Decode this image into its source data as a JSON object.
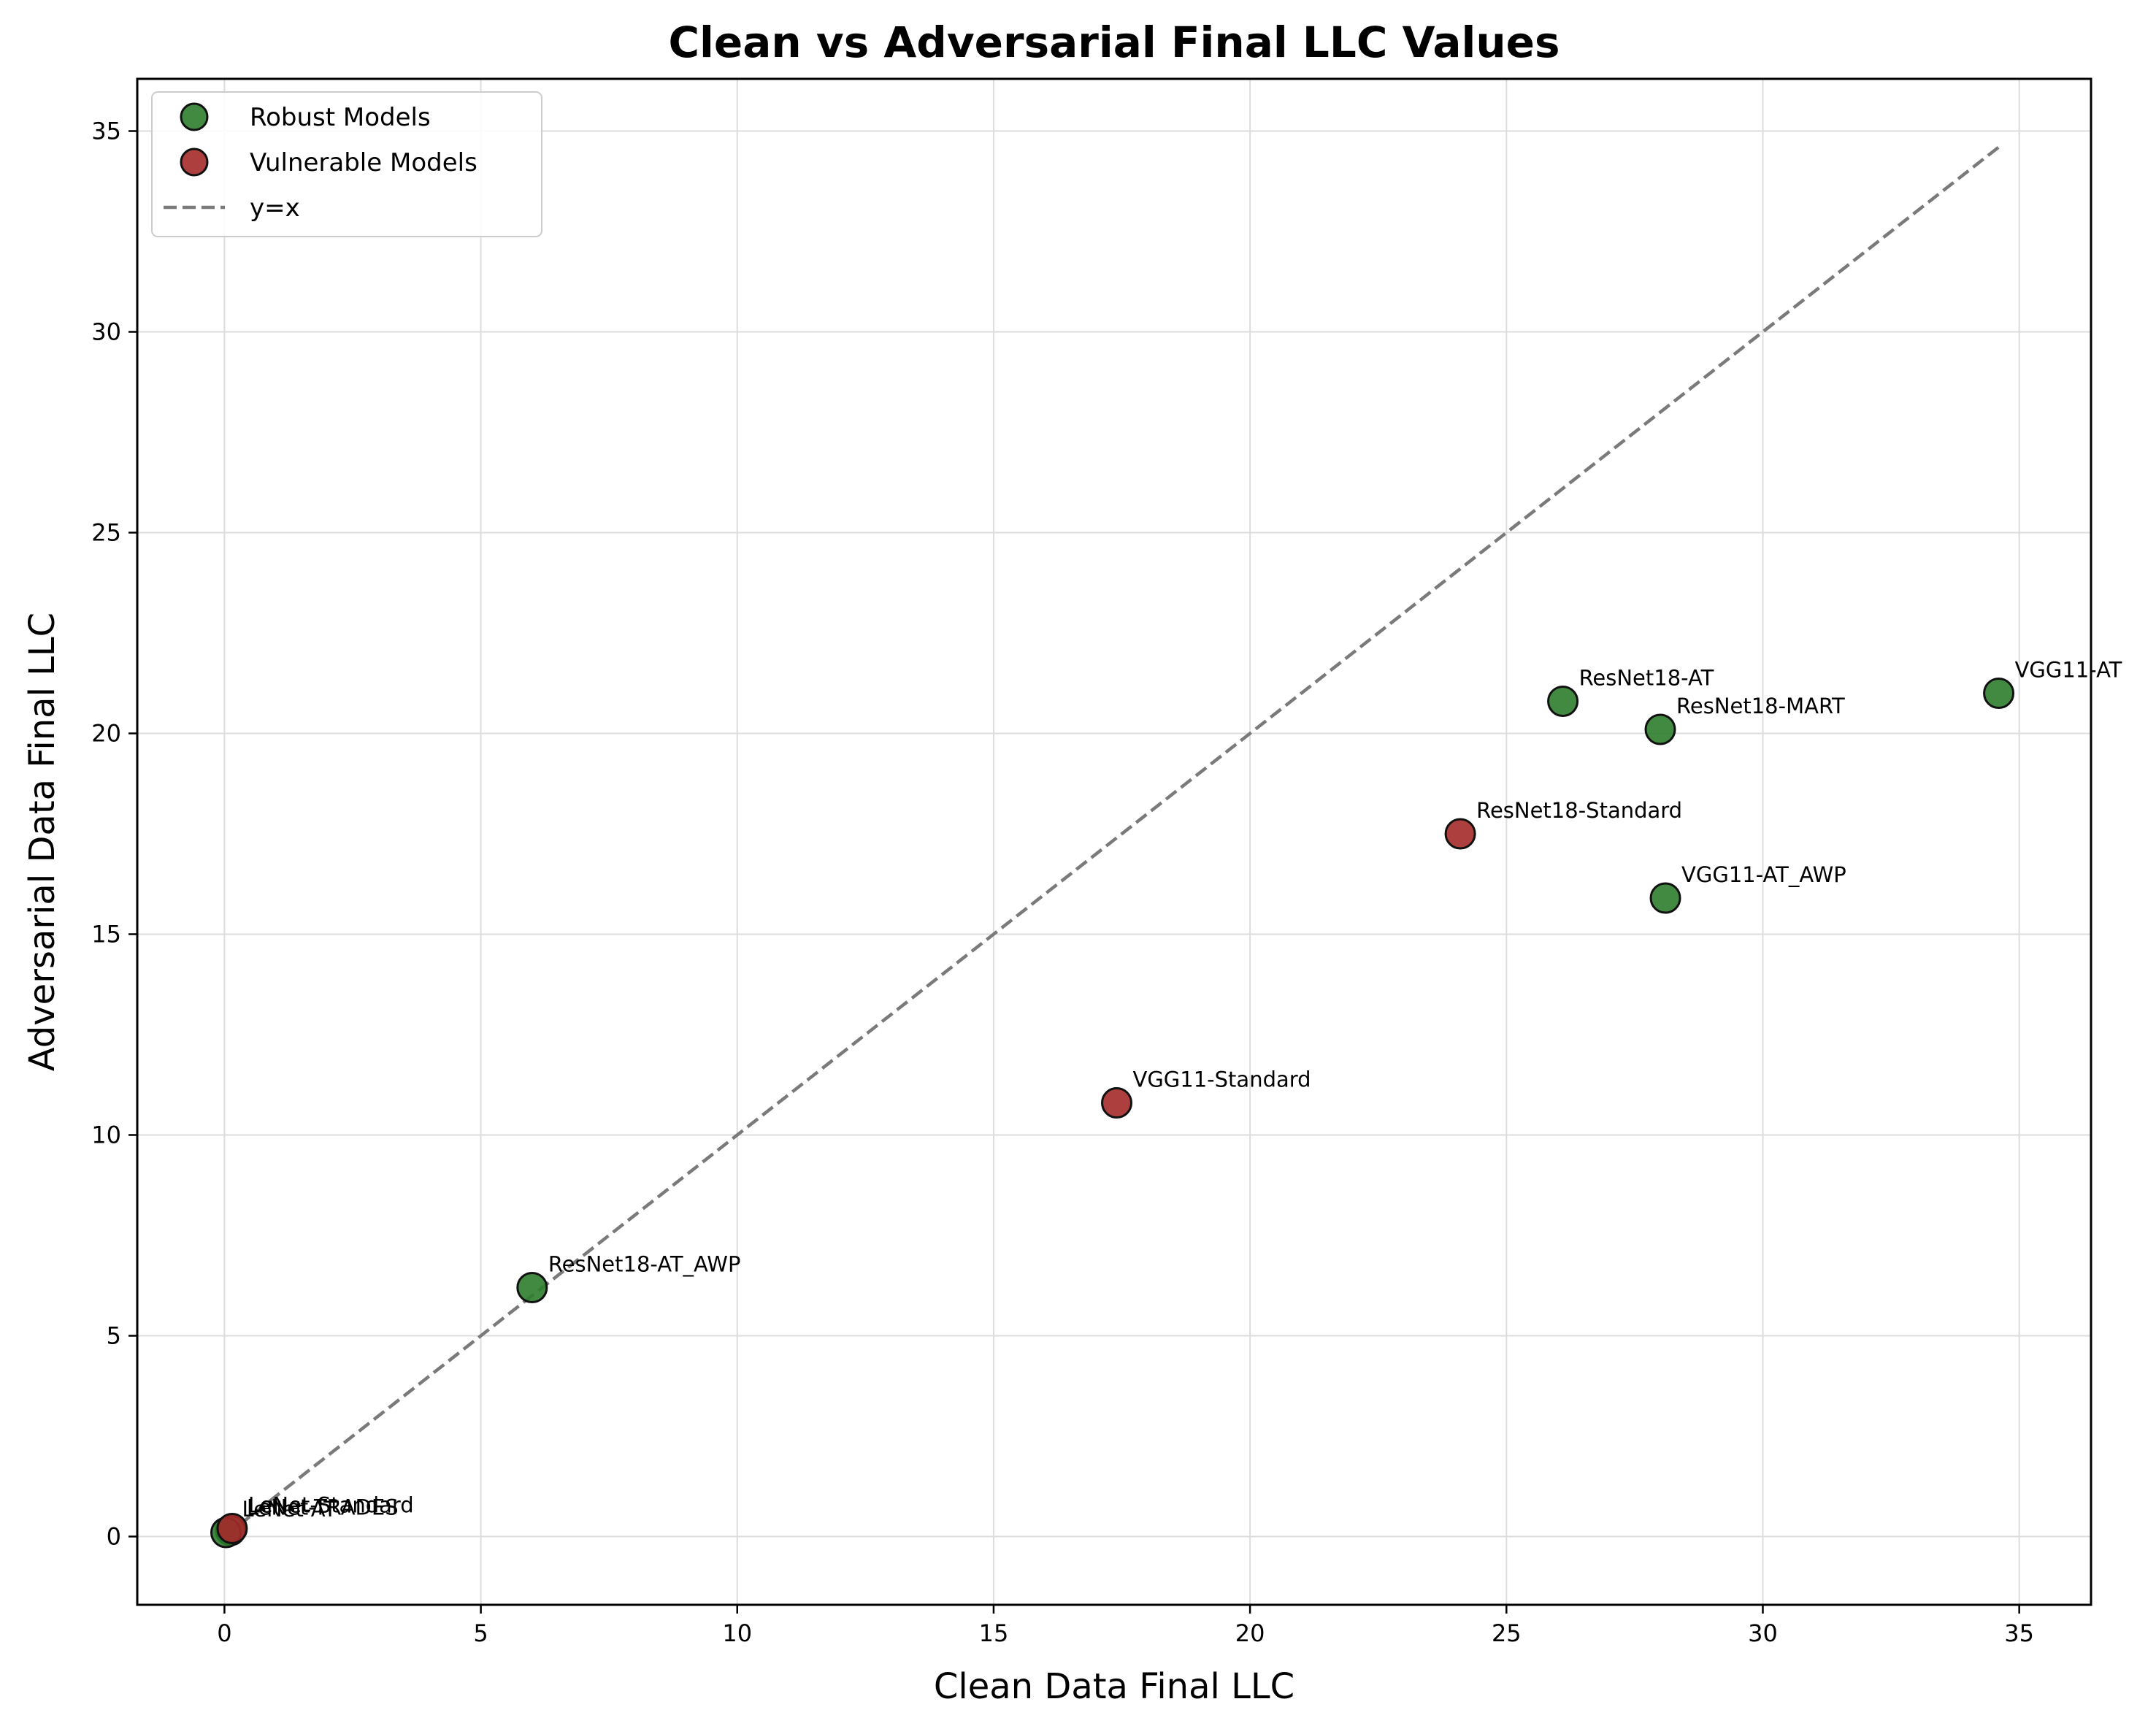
{
  "chart_data": {
    "type": "scatter",
    "title": "Clean vs Adversarial Final LLC Values",
    "xlabel": "Clean Data Final LLC",
    "ylabel": "Adversarial Data Final LLC",
    "xlim": [
      -1.7,
      36.4
    ],
    "ylim": [
      -1.7,
      36.3
    ],
    "xticks": [
      0,
      5,
      10,
      15,
      20,
      25,
      30,
      35
    ],
    "yticks": [
      0,
      5,
      10,
      15,
      20,
      25,
      30,
      35
    ],
    "grid": true,
    "legend": {
      "placement": "top-left",
      "entries": [
        {
          "label": "Robust Models",
          "kind": "marker",
          "color": "#2e7d2e"
        },
        {
          "label": "Vulnerable Models",
          "kind": "marker",
          "color": "#a52a2a"
        },
        {
          "label": "y=x",
          "kind": "dashed-line",
          "color": "#7a7a7a"
        }
      ]
    },
    "series": [
      {
        "name": "Robust Models",
        "color": "#2e7d2e",
        "points": [
          {
            "label": "ResNet18-AT",
            "x": 26.1,
            "y": 20.8
          },
          {
            "label": "ResNet18-MART",
            "x": 28.0,
            "y": 20.1
          },
          {
            "label": "VGG11-AT",
            "x": 34.6,
            "y": 21.0
          },
          {
            "label": "VGG11-AT_AWP",
            "x": 28.1,
            "y": 15.9
          },
          {
            "label": "ResNet18-AT_AWP",
            "x": 6.0,
            "y": 6.2
          },
          {
            "label": "LeNet-TRADES",
            "x": 0.12,
            "y": 0.15
          },
          {
            "label": "LeNet-AT",
            "x": 0.03,
            "y": 0.1
          }
        ]
      },
      {
        "name": "Vulnerable Models",
        "color": "#a52a2a",
        "points": [
          {
            "label": "ResNet18-Standard",
            "x": 24.1,
            "y": 17.5
          },
          {
            "label": "VGG11-Standard",
            "x": 17.4,
            "y": 10.8
          },
          {
            "label": "LeNet-Standard",
            "x": 0.15,
            "y": 0.2
          }
        ]
      }
    ],
    "reference_line": {
      "label": "y=x",
      "from": [
        0,
        0
      ],
      "to": [
        34.6,
        34.6
      ],
      "style": "dashed",
      "color": "#7a7a7a"
    }
  }
}
